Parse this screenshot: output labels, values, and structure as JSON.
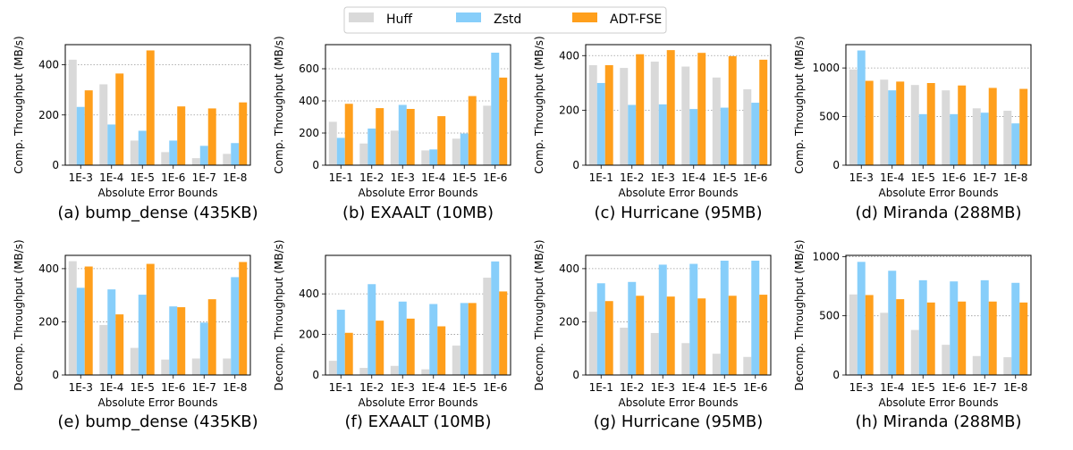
{
  "legend": {
    "entries": [
      {
        "name": "Huff",
        "color": "#d9d9d9"
      },
      {
        "name": "Zstd",
        "color": "#87cefa"
      },
      {
        "name": "ADT-FSE",
        "color": "#ff9f1c"
      }
    ]
  },
  "chart_data": [
    {
      "type": "bar",
      "panel": "a",
      "title": "(a) bump_dense (435KB)",
      "xlabel": "Absolute Error Bounds",
      "ylabel": "Comp. Throughput (MB/s)",
      "categories": [
        "1E-3",
        "1E-4",
        "1E-5",
        "1E-6",
        "1E-7",
        "1E-8"
      ],
      "ylim": [
        0,
        480
      ],
      "yticks": [
        0,
        200,
        400
      ],
      "grid": true,
      "series": [
        {
          "name": "Huff",
          "values": [
            420,
            322,
            98,
            52,
            28,
            45
          ]
        },
        {
          "name": "Zstd",
          "values": [
            232,
            162,
            137,
            98,
            77,
            88
          ]
        },
        {
          "name": "ADT-FSE",
          "values": [
            298,
            365,
            457,
            234,
            226,
            250
          ]
        }
      ]
    },
    {
      "type": "bar",
      "panel": "b",
      "title": "(b) EXAALT (10MB)",
      "xlabel": "Absolute Error Bounds",
      "ylabel": "Comp. Throughput (MB/s)",
      "categories": [
        "1E-1",
        "1E-2",
        "1E-3",
        "1E-4",
        "1E-5",
        "1E-6"
      ],
      "ylim": [
        0,
        750
      ],
      "yticks": [
        0,
        200,
        400,
        600
      ],
      "grid": true,
      "series": [
        {
          "name": "Huff",
          "values": [
            270,
            135,
            215,
            92,
            165,
            370
          ]
        },
        {
          "name": "Zstd",
          "values": [
            170,
            228,
            375,
            98,
            197,
            700
          ]
        },
        {
          "name": "ADT-FSE",
          "values": [
            382,
            355,
            350,
            305,
            430,
            545
          ]
        }
      ]
    },
    {
      "type": "bar",
      "panel": "c",
      "title": "(c) Hurricane (95MB)",
      "xlabel": "Absolute Error Bounds",
      "ylabel": "Comp. Throughput (MB/s)",
      "categories": [
        "1E-1",
        "1E-2",
        "1E-3",
        "1E-4",
        "1E-5",
        "1E-6"
      ],
      "ylim": [
        0,
        440
      ],
      "yticks": [
        0,
        200,
        400
      ],
      "grid": true,
      "series": [
        {
          "name": "Huff",
          "values": [
            365,
            355,
            378,
            360,
            320,
            277
          ]
        },
        {
          "name": "Zstd",
          "values": [
            300,
            220,
            222,
            205,
            210,
            228
          ]
        },
        {
          "name": "ADT-FSE",
          "values": [
            365,
            405,
            420,
            410,
            398,
            385
          ]
        }
      ]
    },
    {
      "type": "bar",
      "panel": "d",
      "title": "(d) Miranda (288MB)",
      "xlabel": "Absolute Error Bounds",
      "ylabel": "Comp. Throughput (MB/s)",
      "categories": [
        "1E-3",
        "1E-4",
        "1E-5",
        "1E-6",
        "1E-7",
        "1E-8"
      ],
      "ylim": [
        0,
        1240
      ],
      "yticks": [
        0,
        500,
        1000
      ],
      "grid": true,
      "series": [
        {
          "name": "Huff",
          "values": [
            985,
            880,
            825,
            770,
            585,
            560
          ]
        },
        {
          "name": "Zstd",
          "values": [
            1180,
            770,
            525,
            525,
            540,
            430
          ]
        },
        {
          "name": "ADT-FSE",
          "values": [
            868,
            860,
            845,
            820,
            795,
            785
          ]
        }
      ]
    },
    {
      "type": "bar",
      "panel": "e",
      "title": "(e) bump_dense (435KB)",
      "xlabel": "Absolute Error Bounds",
      "ylabel": "Decomp. Throughput (MB/s)",
      "categories": [
        "1E-3",
        "1E-4",
        "1E-5",
        "1E-6",
        "1E-7",
        "1E-8"
      ],
      "ylim": [
        0,
        450
      ],
      "yticks": [
        0,
        200,
        400
      ],
      "grid": true,
      "series": [
        {
          "name": "Huff",
          "values": [
            428,
            188,
            102,
            58,
            62,
            62
          ]
        },
        {
          "name": "Zstd",
          "values": [
            328,
            322,
            302,
            258,
            197,
            368
          ]
        },
        {
          "name": "ADT-FSE",
          "values": [
            408,
            228,
            418,
            255,
            285,
            425
          ]
        }
      ]
    },
    {
      "type": "bar",
      "panel": "f",
      "title": "(f) EXAALT (10MB)",
      "xlabel": "Absolute Error Bounds",
      "ylabel": "Decomp. Throughput (MB/s)",
      "categories": [
        "1E-1",
        "1E-2",
        "1E-3",
        "1E-4",
        "1E-5",
        "1E-6"
      ],
      "ylim": [
        0,
        590
      ],
      "yticks": [
        0,
        200,
        400
      ],
      "grid": true,
      "series": [
        {
          "name": "Huff",
          "values": [
            70,
            35,
            45,
            28,
            145,
            480
          ]
        },
        {
          "name": "Zstd",
          "values": [
            322,
            448,
            362,
            350,
            355,
            560
          ]
        },
        {
          "name": "ADT-FSE",
          "values": [
            208,
            268,
            278,
            240,
            355,
            412
          ]
        }
      ]
    },
    {
      "type": "bar",
      "panel": "g",
      "title": "(g) Hurricane (95MB)",
      "xlabel": "Absolute Error Bounds",
      "ylabel": "Decomp. Throughput (MB/s)",
      "categories": [
        "1E-1",
        "1E-2",
        "1E-3",
        "1E-4",
        "1E-5",
        "1E-6"
      ],
      "ylim": [
        0,
        450
      ],
      "yticks": [
        0,
        200,
        400
      ],
      "grid": true,
      "series": [
        {
          "name": "Huff",
          "values": [
            238,
            178,
            158,
            120,
            80,
            68
          ]
        },
        {
          "name": "Zstd",
          "values": [
            345,
            350,
            415,
            418,
            430,
            430
          ]
        },
        {
          "name": "ADT-FSE",
          "values": [
            278,
            298,
            295,
            288,
            298,
            302
          ]
        }
      ]
    },
    {
      "type": "bar",
      "panel": "h",
      "title": "(h) Miranda (288MB)",
      "xlabel": "Absolute Error Bounds",
      "ylabel": "Decomp. Throughput (MB/s)",
      "categories": [
        "1E-3",
        "1E-4",
        "1E-5",
        "1E-6",
        "1E-7",
        "1E-8"
      ],
      "ylim": [
        0,
        1010
      ],
      "yticks": [
        0,
        500,
        1000
      ],
      "grid": true,
      "series": [
        {
          "name": "Huff",
          "values": [
            680,
            525,
            380,
            255,
            160,
            150
          ]
        },
        {
          "name": "Zstd",
          "values": [
            955,
            880,
            800,
            790,
            800,
            778
          ]
        },
        {
          "name": "ADT-FSE",
          "values": [
            675,
            640,
            612,
            620,
            620,
            612
          ]
        }
      ]
    }
  ]
}
